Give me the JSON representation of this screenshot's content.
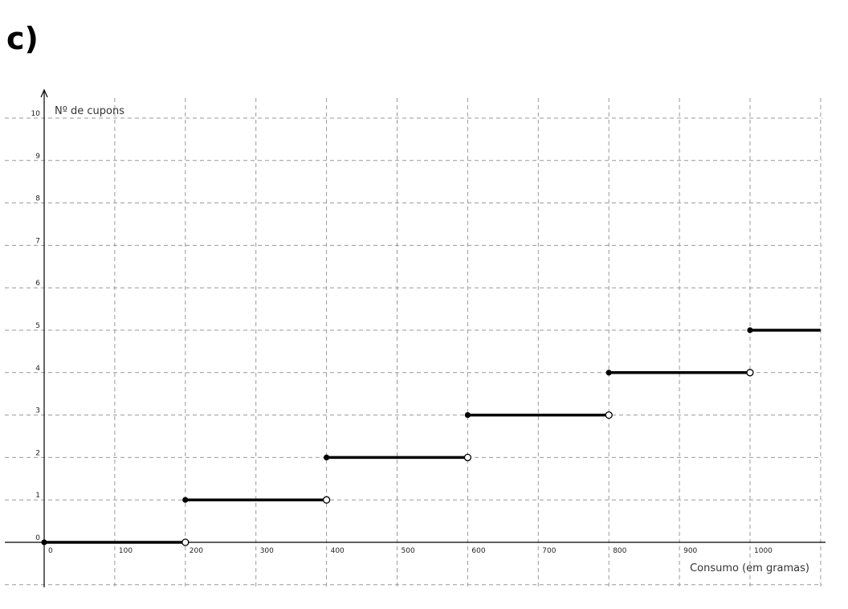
{
  "heading": "c)",
  "chart_data": {
    "type": "line",
    "title": "",
    "xlabel": "Consumo (em gramas)",
    "ylabel": "Nº de cupons",
    "xlim": [
      -55,
      1100
    ],
    "ylim": [
      -1.1,
      10.4
    ],
    "x_ticks": [
      0,
      100,
      200,
      300,
      400,
      500,
      600,
      700,
      800,
      900,
      1000
    ],
    "x_tick_labels": [
      "0",
      "100",
      "200",
      "300",
      "400",
      "500",
      "600",
      "700",
      "800",
      "900",
      "1000"
    ],
    "y_ticks": [
      0,
      1,
      2,
      3,
      4,
      5,
      6,
      7,
      8,
      9,
      10
    ],
    "y_tick_labels": [
      "0",
      "1",
      "2",
      "3",
      "4",
      "5",
      "6",
      "7",
      "8",
      "9",
      "10"
    ],
    "grid": true,
    "series": [
      {
        "segments": [
          {
            "x_start": 0,
            "x_end": 200,
            "y": 0,
            "start_closed": true,
            "end_closed": false
          },
          {
            "x_start": 200,
            "x_end": 400,
            "y": 1,
            "start_closed": true,
            "end_closed": false
          },
          {
            "x_start": 400,
            "x_end": 600,
            "y": 2,
            "start_closed": true,
            "end_closed": false
          },
          {
            "x_start": 600,
            "x_end": 800,
            "y": 3,
            "start_closed": true,
            "end_closed": false
          },
          {
            "x_start": 800,
            "x_end": 1000,
            "y": 4,
            "start_closed": true,
            "end_closed": false
          },
          {
            "x_start": 1000,
            "x_end": 1100,
            "y": 5,
            "start_closed": true,
            "end_closed": null
          }
        ]
      }
    ],
    "colors": {
      "line": "#000000",
      "grid": "#9a9a9a",
      "axis": "#000000"
    }
  }
}
